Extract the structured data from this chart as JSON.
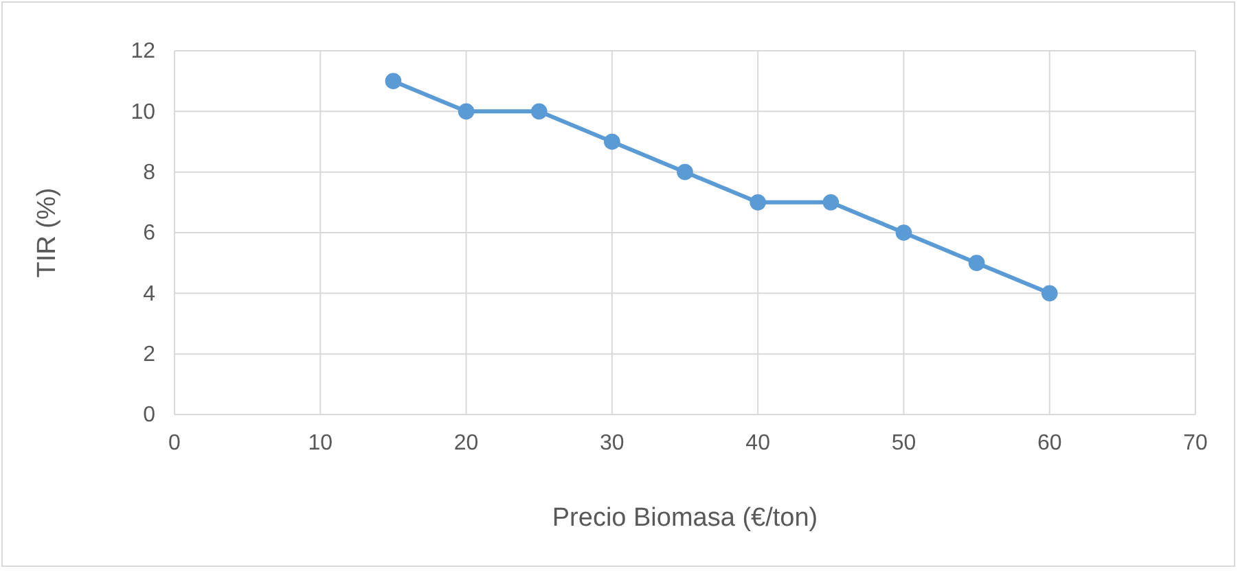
{
  "chart_data": {
    "type": "line",
    "xlabel": "Precio Biomasa (€/ton)",
    "ylabel": "TIR (%)",
    "x": [
      15,
      20,
      25,
      30,
      35,
      40,
      45,
      50,
      55,
      60
    ],
    "series": [
      {
        "color": "#5b9bd5",
        "values": [
          11,
          10,
          10,
          9,
          8,
          7,
          7,
          6,
          5,
          4
        ]
      }
    ],
    "xlim": [
      0,
      70
    ],
    "xticks": [
      0,
      10,
      20,
      30,
      40,
      50,
      60,
      70
    ],
    "ylim": [
      0,
      12
    ],
    "yticks": [
      0,
      2,
      4,
      6,
      8,
      10,
      12
    ],
    "grid": true,
    "marker": "circle",
    "line_style": "solid"
  }
}
